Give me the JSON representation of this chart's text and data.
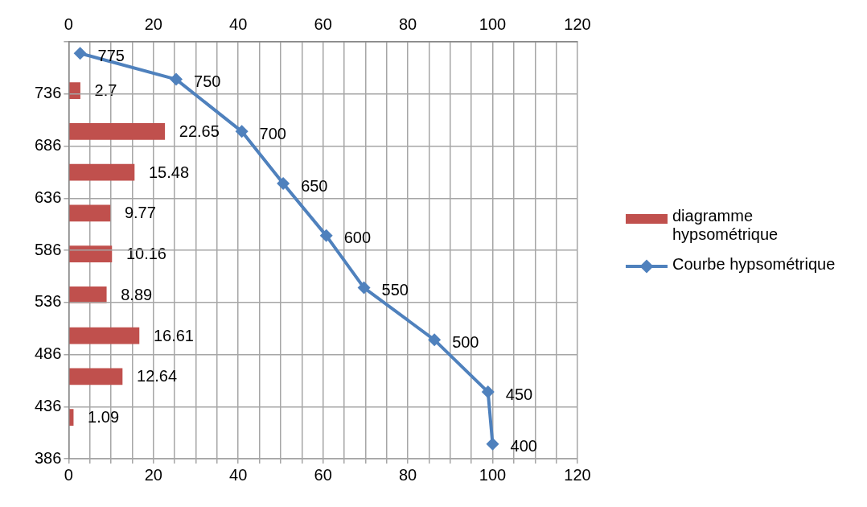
{
  "chart_data": [
    {
      "type": "bar",
      "orientation": "horizontal",
      "categories": [
        null,
        null,
        null,
        null,
        null,
        null,
        null,
        null,
        null
      ],
      "series": [
        {
          "name": "diagramme hypsométrique",
          "color": "#c0504d",
          "values": [
            2.7,
            22.65,
            15.48,
            9.77,
            10.16,
            8.89,
            16.61,
            12.64,
            1.09
          ]
        }
      ],
      "xlim": [
        0,
        120
      ],
      "xticks": [
        0,
        {
          "value": 5,
          "label": null
        },
        {
          "value": 10,
          "label": null
        },
        {
          "value": 15,
          "label": null
        },
        20,
        {
          "value": 25,
          "label": null
        },
        {
          "value": 30,
          "label": null
        },
        {
          "value": 35,
          "label": null
        },
        40,
        {
          "value": 45,
          "label": null
        },
        {
          "value": 50,
          "label": null
        },
        {
          "value": 55,
          "label": null
        },
        60,
        {
          "value": 65,
          "label": null
        },
        {
          "value": 70,
          "label": null
        },
        {
          "value": 75,
          "label": null
        },
        80,
        {
          "value": 85,
          "label": null
        },
        {
          "value": 90,
          "label": null
        },
        {
          "value": 95,
          "label": null
        },
        100,
        {
          "value": 105,
          "label": null
        },
        {
          "value": 110,
          "label": null
        },
        {
          "value": 115,
          "label": null
        },
        120
      ],
      "grid": "x",
      "legend": "right",
      "data_labels": true
    },
    {
      "type": "line",
      "marker": "diamond",
      "x": [
        2.7,
        25.35,
        40.83,
        50.6,
        60.76,
        69.65,
        86.26,
        98.9,
        99.99
      ],
      "series": [
        {
          "name": "Courbe hypsométrique",
          "color": "#4f81bd",
          "values": [
            775,
            750,
            700,
            650,
            600,
            550,
            500,
            450,
            400
          ]
        }
      ],
      "xlim": [
        0,
        120
      ],
      "xticks": [
        0,
        20,
        40,
        60,
        80,
        100,
        120
      ],
      "ylim": [
        386,
        786
      ],
      "yticks": [
        386,
        436,
        486,
        536,
        586,
        636,
        686,
        736,
        {
          "value": 786,
          "label": null
        }
      ],
      "grid": "y",
      "legend": "right",
      "data_labels": true
    }
  ]
}
